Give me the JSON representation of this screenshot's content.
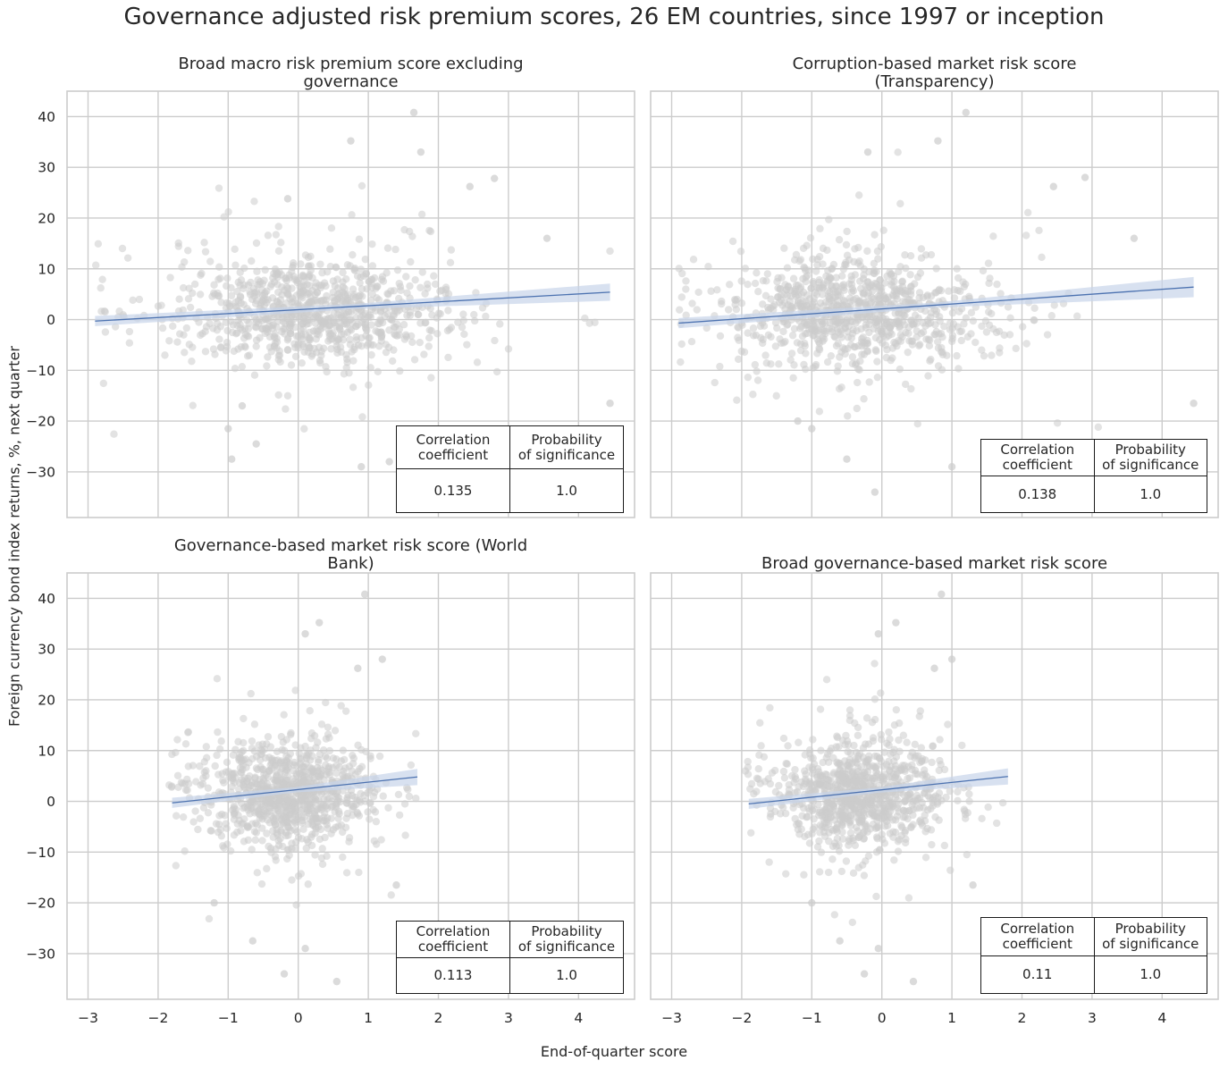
{
  "figure": {
    "title": "Governance adjusted risk premium scores, 26 EM countries, since 1997 or inception",
    "xlabel": "End-of-quarter score",
    "ylabel": "Foreign currency bond index returns, %, next quarter"
  },
  "style": {
    "point_color": "#cccccc",
    "line_color": "#4c72b0",
    "band_color": "#c7d4ea",
    "grid_color": "#cccccc",
    "axes_edge_color": "#cccccc"
  },
  "chart_data": [
    {
      "type": "scatter",
      "title": "Broad macro risk premium score excluding\ngovernance",
      "xlim": [
        -3.3,
        4.8
      ],
      "ylim": [
        -39,
        45
      ],
      "xticks": [
        -3,
        -2,
        -1,
        0,
        1,
        2,
        3,
        4
      ],
      "yticks": [
        -30,
        -20,
        -10,
        0,
        10,
        20,
        30,
        40
      ],
      "grid": true,
      "regression": {
        "x": [
          -2.9,
          4.45
        ],
        "y": [
          -0.3,
          5.4
        ],
        "ci_halfwidth": [
          1.0,
          1.7
        ]
      },
      "cloud": {
        "x_range": [
          -2.9,
          4.45
        ],
        "x_center": 0.2,
        "x_spread": 0.9,
        "y_spread": 7,
        "n": 900
      },
      "points": [
        [
          -1.0,
          -21.5
        ],
        [
          -0.95,
          -27.5
        ],
        [
          -0.6,
          -24.5
        ],
        [
          -0.8,
          -17
        ],
        [
          1.65,
          40.8
        ],
        [
          0.75,
          35.2
        ],
        [
          1.75,
          33
        ],
        [
          -0.15,
          23.8
        ],
        [
          2.45,
          26.2
        ],
        [
          4.45,
          -16.5
        ],
        [
          3.55,
          16
        ],
        [
          2.8,
          27.8
        ],
        [
          0.9,
          -29
        ],
        [
          1.3,
          -28
        ]
      ],
      "table": {
        "headers": [
          "Correlation\ncoefficient",
          "Probability\nof significance"
        ],
        "values": [
          "0.135",
          "1.0"
        ],
        "position": "lower-right"
      }
    },
    {
      "type": "scatter",
      "title": "Corruption-based market risk score\n(Transparency)",
      "xlim": [
        -3.3,
        4.8
      ],
      "ylim": [
        -39,
        45
      ],
      "xticks": [
        -3,
        -2,
        -1,
        0,
        1,
        2,
        3,
        4
      ],
      "yticks": [
        -30,
        -20,
        -10,
        0,
        10,
        20,
        30,
        40
      ],
      "grid": true,
      "regression": {
        "x": [
          -2.9,
          4.45
        ],
        "y": [
          -0.7,
          6.4
        ],
        "ci_halfwidth": [
          1.0,
          2.0
        ]
      },
      "cloud": {
        "x_range": [
          -2.9,
          4.45
        ],
        "x_center": -0.4,
        "x_spread": 0.85,
        "y_spread": 7,
        "n": 900
      },
      "points": [
        [
          -1.0,
          -21.5
        ],
        [
          -0.5,
          -27.5
        ],
        [
          -0.1,
          -34
        ],
        [
          1.2,
          40.8
        ],
        [
          0.8,
          35.2
        ],
        [
          -0.2,
          33
        ],
        [
          2.45,
          26.2
        ],
        [
          4.45,
          -16.5
        ],
        [
          3.6,
          16
        ],
        [
          2.9,
          28
        ],
        [
          1.0,
          -29
        ],
        [
          -1.2,
          -20
        ]
      ],
      "table": {
        "headers": [
          "Correlation\ncoefficient",
          "Probability\nof significance"
        ],
        "values": [
          "0.138",
          "1.0"
        ],
        "position": "lower-right"
      }
    },
    {
      "type": "scatter",
      "title": "Governance-based market risk score (World\nBank)",
      "xlim": [
        -3.3,
        4.8
      ],
      "ylim": [
        -39,
        45
      ],
      "xticks": [
        -3,
        -2,
        -1,
        0,
        1,
        2,
        3,
        4
      ],
      "yticks": [
        -30,
        -20,
        -10,
        0,
        10,
        20,
        30,
        40
      ],
      "grid": true,
      "regression": {
        "x": [
          -1.8,
          1.7
        ],
        "y": [
          -0.3,
          4.8
        ],
        "ci_halfwidth": [
          1.0,
          1.6
        ]
      },
      "cloud": {
        "x_range": [
          -1.85,
          1.7
        ],
        "x_center": -0.2,
        "x_spread": 0.55,
        "y_spread": 7,
        "n": 900
      },
      "points": [
        [
          -0.2,
          -34
        ],
        [
          0.1,
          -29
        ],
        [
          0.55,
          -35.5
        ],
        [
          0.95,
          40.8
        ],
        [
          0.3,
          35.2
        ],
        [
          0.1,
          33
        ],
        [
          0.85,
          26.2
        ],
        [
          1.2,
          28
        ],
        [
          1.4,
          -16.5
        ],
        [
          -0.65,
          -27.5
        ],
        [
          -1.2,
          -20
        ]
      ],
      "table": {
        "headers": [
          "Correlation\ncoefficient",
          "Probability\nof significance"
        ],
        "values": [
          "0.113",
          "1.0"
        ],
        "position": "lower-right"
      }
    },
    {
      "type": "scatter",
      "title": "Broad governance-based market risk score",
      "xlim": [
        -3.3,
        4.8
      ],
      "ylim": [
        -39,
        45
      ],
      "xticks": [
        -3,
        -2,
        -1,
        0,
        1,
        2,
        3,
        4
      ],
      "yticks": [
        -30,
        -20,
        -10,
        0,
        10,
        20,
        30,
        40
      ],
      "grid": true,
      "regression": {
        "x": [
          -1.9,
          1.8
        ],
        "y": [
          -0.5,
          4.9
        ],
        "ci_halfwidth": [
          1.0,
          1.6
        ]
      },
      "cloud": {
        "x_range": [
          -1.95,
          1.8
        ],
        "x_center": -0.3,
        "x_spread": 0.55,
        "y_spread": 7,
        "n": 900
      },
      "points": [
        [
          -0.25,
          -34
        ],
        [
          -0.05,
          -29
        ],
        [
          0.45,
          -35.5
        ],
        [
          0.85,
          40.8
        ],
        [
          0.2,
          35.2
        ],
        [
          -0.05,
          33
        ],
        [
          0.75,
          26.2
        ],
        [
          1.0,
          28
        ],
        [
          1.3,
          -16.5
        ],
        [
          -0.6,
          -27.5
        ],
        [
          -1.0,
          -20
        ]
      ],
      "table": {
        "headers": [
          "Correlation\ncoefficient",
          "Probability\nof significance"
        ],
        "values": [
          "0.11",
          "1.0"
        ],
        "position": "lower-right"
      }
    }
  ]
}
